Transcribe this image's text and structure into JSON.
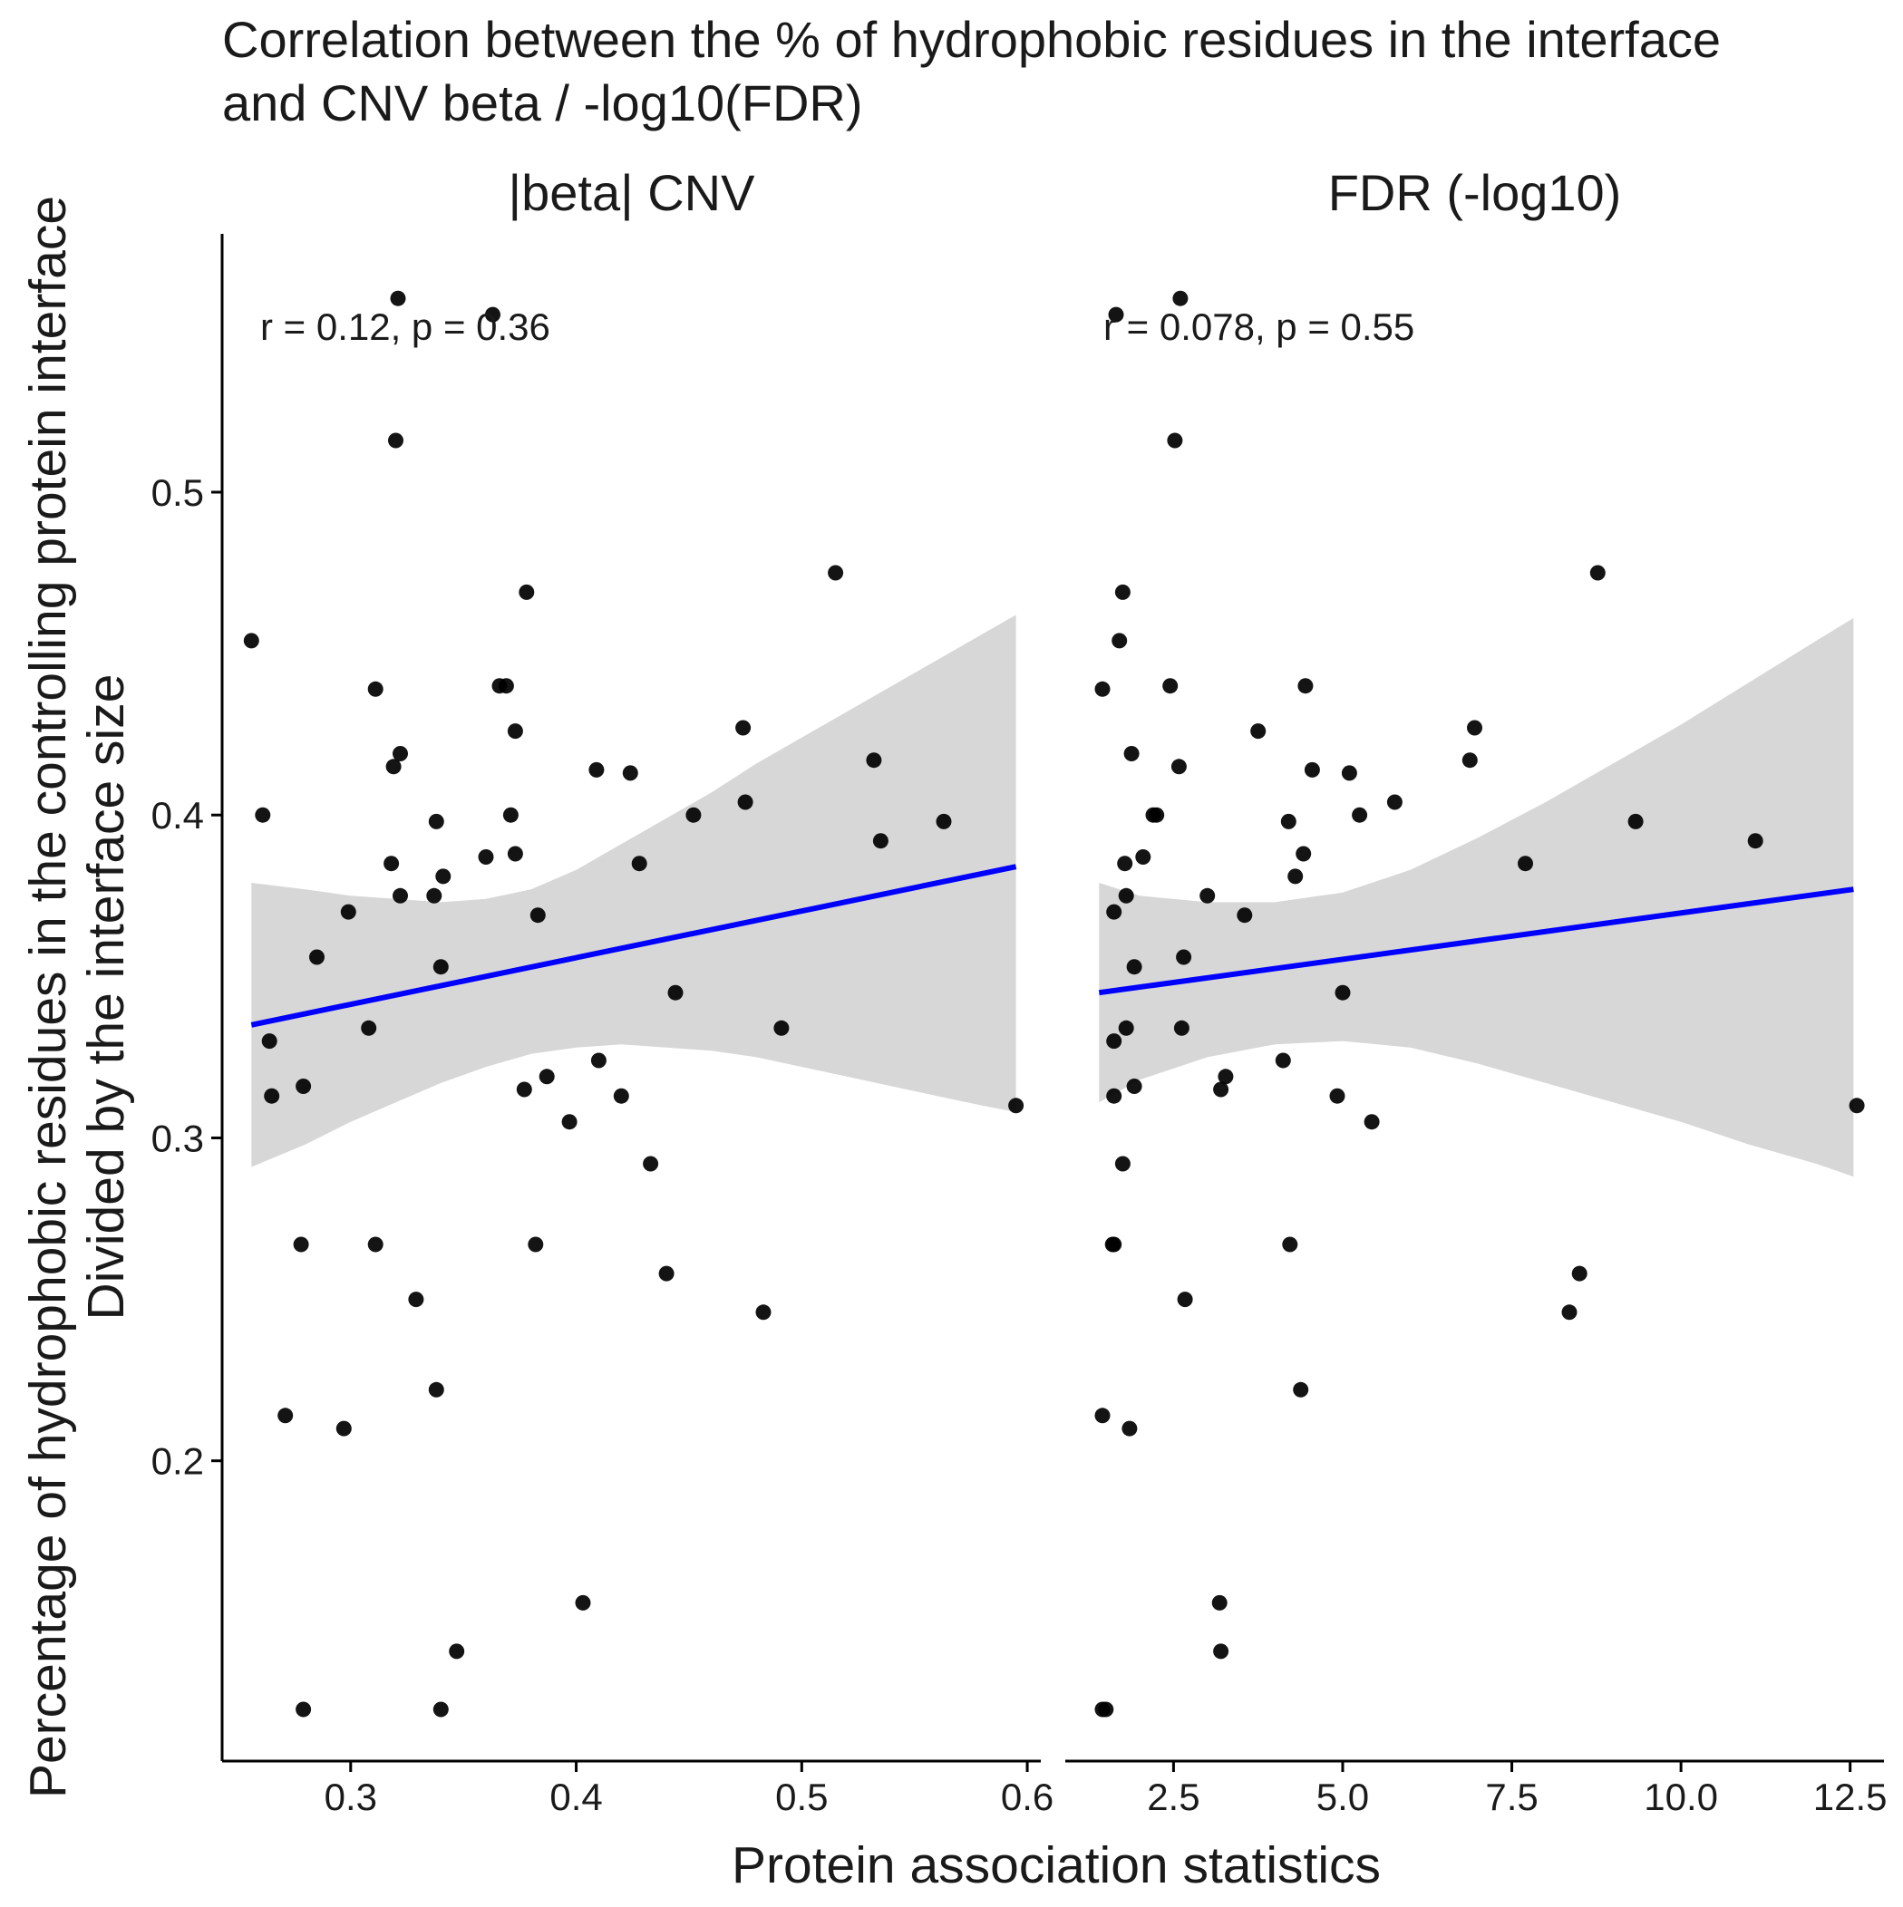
{
  "chart": {
    "title_line1": "Correlation between the % of hydrophobic residues in the interface",
    "title_line2": "and CNV beta / -log10(FDR)",
    "xlabel": "Protein association statistics",
    "ylabel_line1": "Percentage of hydrophobic residues in the controlling protein interface",
    "ylabel_line2": "Divided by the interface size"
  },
  "colors": {
    "points": "#000000",
    "fit_line": "#0000ff",
    "confidence_band": "#d3d3d3",
    "axis": "#000000",
    "background": "#ffffff"
  },
  "chart_data": [
    {
      "type": "scatter",
      "panel": "|beta| CNV",
      "annotation": "r = 0.12, p = 0.36",
      "xlim": [
        0.243,
        0.606
      ],
      "ylim": [
        0.107,
        0.58
      ],
      "x_ticks": [
        0.3,
        0.4,
        0.5,
        0.6
      ],
      "x_tick_labels": [
        "0.3",
        "0.4",
        "0.5",
        "0.6"
      ],
      "y_ticks": [
        0.2,
        0.3,
        0.4,
        0.5
      ],
      "y_tick_labels": [
        "0.2",
        "0.3",
        "0.4",
        "0.5"
      ],
      "fit": {
        "x": [
          0.256,
          0.595
        ],
        "y": [
          0.335,
          0.384
        ]
      },
      "band": {
        "x": [
          0.256,
          0.28,
          0.3,
          0.32,
          0.34,
          0.36,
          0.38,
          0.4,
          0.42,
          0.44,
          0.46,
          0.48,
          0.5,
          0.52,
          0.54,
          0.56,
          0.58,
          0.595
        ],
        "upper": [
          0.379,
          0.377,
          0.375,
          0.374,
          0.373,
          0.374,
          0.377,
          0.383,
          0.391,
          0.399,
          0.407,
          0.416,
          0.424,
          0.432,
          0.44,
          0.448,
          0.456,
          0.462
        ],
        "lower": [
          0.291,
          0.298,
          0.305,
          0.311,
          0.317,
          0.322,
          0.326,
          0.328,
          0.329,
          0.328,
          0.327,
          0.325,
          0.322,
          0.319,
          0.316,
          0.313,
          0.31,
          0.308
        ]
      },
      "points": [
        {
          "x": 0.256,
          "y": 0.454
        },
        {
          "x": 0.261,
          "y": 0.4
        },
        {
          "x": 0.264,
          "y": 0.33
        },
        {
          "x": 0.265,
          "y": 0.313
        },
        {
          "x": 0.271,
          "y": 0.214
        },
        {
          "x": 0.278,
          "y": 0.267
        },
        {
          "x": 0.279,
          "y": 0.316
        },
        {
          "x": 0.279,
          "y": 0.123
        },
        {
          "x": 0.285,
          "y": 0.356
        },
        {
          "x": 0.297,
          "y": 0.21
        },
        {
          "x": 0.299,
          "y": 0.37
        },
        {
          "x": 0.308,
          "y": 0.334
        },
        {
          "x": 0.311,
          "y": 0.267
        },
        {
          "x": 0.311,
          "y": 0.439
        },
        {
          "x": 0.318,
          "y": 0.385
        },
        {
          "x": 0.319,
          "y": 0.415
        },
        {
          "x": 0.32,
          "y": 0.516
        },
        {
          "x": 0.321,
          "y": 0.56
        },
        {
          "x": 0.322,
          "y": 0.375
        },
        {
          "x": 0.322,
          "y": 0.419
        },
        {
          "x": 0.329,
          "y": 0.25
        },
        {
          "x": 0.337,
          "y": 0.375
        },
        {
          "x": 0.338,
          "y": 0.398
        },
        {
          "x": 0.338,
          "y": 0.222
        },
        {
          "x": 0.34,
          "y": 0.353
        },
        {
          "x": 0.34,
          "y": 0.123
        },
        {
          "x": 0.341,
          "y": 0.381
        },
        {
          "x": 0.347,
          "y": 0.141
        },
        {
          "x": 0.36,
          "y": 0.387
        },
        {
          "x": 0.363,
          "y": 0.555
        },
        {
          "x": 0.366,
          "y": 0.44
        },
        {
          "x": 0.369,
          "y": 0.44
        },
        {
          "x": 0.371,
          "y": 0.4
        },
        {
          "x": 0.373,
          "y": 0.388
        },
        {
          "x": 0.373,
          "y": 0.426
        },
        {
          "x": 0.377,
          "y": 0.315
        },
        {
          "x": 0.378,
          "y": 0.469
        },
        {
          "x": 0.382,
          "y": 0.267
        },
        {
          "x": 0.383,
          "y": 0.369
        },
        {
          "x": 0.387,
          "y": 0.319
        },
        {
          "x": 0.397,
          "y": 0.305
        },
        {
          "x": 0.403,
          "y": 0.156
        },
        {
          "x": 0.409,
          "y": 0.414
        },
        {
          "x": 0.41,
          "y": 0.324
        },
        {
          "x": 0.42,
          "y": 0.313
        },
        {
          "x": 0.424,
          "y": 0.413
        },
        {
          "x": 0.428,
          "y": 0.385
        },
        {
          "x": 0.433,
          "y": 0.292
        },
        {
          "x": 0.44,
          "y": 0.258
        },
        {
          "x": 0.444,
          "y": 0.345
        },
        {
          "x": 0.452,
          "y": 0.4
        },
        {
          "x": 0.474,
          "y": 0.427
        },
        {
          "x": 0.475,
          "y": 0.404
        },
        {
          "x": 0.483,
          "y": 0.246
        },
        {
          "x": 0.491,
          "y": 0.334
        },
        {
          "x": 0.515,
          "y": 0.475
        },
        {
          "x": 0.532,
          "y": 0.417
        },
        {
          "x": 0.535,
          "y": 0.392
        },
        {
          "x": 0.563,
          "y": 0.398
        },
        {
          "x": 0.595,
          "y": 0.31
        }
      ]
    },
    {
      "type": "scatter",
      "panel": "FDR (-log10)",
      "annotation": "r = 0.078, p = 0.55",
      "xlim": [
        0.9,
        13.0
      ],
      "ylim": [
        0.107,
        0.58
      ],
      "x_ticks": [
        2.5,
        5.0,
        7.5,
        10.0,
        12.5
      ],
      "x_tick_labels": [
        "2.5",
        "5.0",
        "7.5",
        "10.0",
        "12.5"
      ],
      "y_ticks": [
        0.2,
        0.3,
        0.4,
        0.5
      ],
      "y_tick_labels": [
        "0.2",
        "0.3",
        "0.4",
        "0.5"
      ],
      "fit": {
        "x": [
          1.4,
          12.55
        ],
        "y": [
          0.345,
          0.377
        ]
      },
      "band": {
        "x": [
          1.4,
          2.0,
          3.0,
          4.0,
          5.0,
          6.0,
          7.0,
          8.0,
          9.0,
          10.0,
          11.0,
          12.0,
          12.55
        ],
        "upper": [
          0.379,
          0.375,
          0.373,
          0.373,
          0.376,
          0.383,
          0.393,
          0.404,
          0.416,
          0.428,
          0.441,
          0.454,
          0.461
        ],
        "lower": [
          0.311,
          0.318,
          0.325,
          0.329,
          0.33,
          0.328,
          0.323,
          0.317,
          0.311,
          0.305,
          0.298,
          0.292,
          0.288
        ]
      },
      "points": [
        {
          "x": 1.45,
          "y": 0.123
        },
        {
          "x": 1.5,
          "y": 0.123
        },
        {
          "x": 1.45,
          "y": 0.439
        },
        {
          "x": 1.45,
          "y": 0.214
        },
        {
          "x": 1.6,
          "y": 0.267
        },
        {
          "x": 1.62,
          "y": 0.267
        },
        {
          "x": 1.62,
          "y": 0.313
        },
        {
          "x": 1.62,
          "y": 0.33
        },
        {
          "x": 1.62,
          "y": 0.37
        },
        {
          "x": 1.65,
          "y": 0.555
        },
        {
          "x": 1.7,
          "y": 0.454
        },
        {
          "x": 1.75,
          "y": 0.292
        },
        {
          "x": 1.75,
          "y": 0.469
        },
        {
          "x": 1.78,
          "y": 0.385
        },
        {
          "x": 1.8,
          "y": 0.375
        },
        {
          "x": 1.8,
          "y": 0.334
        },
        {
          "x": 1.85,
          "y": 0.21
        },
        {
          "x": 1.88,
          "y": 0.419
        },
        {
          "x": 1.92,
          "y": 0.316
        },
        {
          "x": 1.92,
          "y": 0.353
        },
        {
          "x": 2.05,
          "y": 0.387
        },
        {
          "x": 2.2,
          "y": 0.4
        },
        {
          "x": 2.25,
          "y": 0.4
        },
        {
          "x": 2.45,
          "y": 0.44
        },
        {
          "x": 2.52,
          "y": 0.516
        },
        {
          "x": 2.58,
          "y": 0.415
        },
        {
          "x": 2.6,
          "y": 0.56
        },
        {
          "x": 2.62,
          "y": 0.334
        },
        {
          "x": 2.65,
          "y": 0.356
        },
        {
          "x": 2.67,
          "y": 0.25
        },
        {
          "x": 3.0,
          "y": 0.375
        },
        {
          "x": 3.18,
          "y": 0.156
        },
        {
          "x": 3.2,
          "y": 0.141
        },
        {
          "x": 3.2,
          "y": 0.315
        },
        {
          "x": 3.27,
          "y": 0.319
        },
        {
          "x": 3.55,
          "y": 0.369
        },
        {
          "x": 3.75,
          "y": 0.426
        },
        {
          "x": 4.12,
          "y": 0.324
        },
        {
          "x": 4.2,
          "y": 0.398
        },
        {
          "x": 4.22,
          "y": 0.267
        },
        {
          "x": 4.3,
          "y": 0.381
        },
        {
          "x": 4.38,
          "y": 0.222
        },
        {
          "x": 4.42,
          "y": 0.388
        },
        {
          "x": 4.45,
          "y": 0.44
        },
        {
          "x": 4.55,
          "y": 0.414
        },
        {
          "x": 4.92,
          "y": 0.313
        },
        {
          "x": 5.0,
          "y": 0.345
        },
        {
          "x": 5.1,
          "y": 0.413
        },
        {
          "x": 5.25,
          "y": 0.4
        },
        {
          "x": 5.43,
          "y": 0.305
        },
        {
          "x": 5.77,
          "y": 0.404
        },
        {
          "x": 6.88,
          "y": 0.417
        },
        {
          "x": 6.95,
          "y": 0.427
        },
        {
          "x": 7.7,
          "y": 0.385
        },
        {
          "x": 8.35,
          "y": 0.246
        },
        {
          "x": 8.5,
          "y": 0.258
        },
        {
          "x": 8.77,
          "y": 0.475
        },
        {
          "x": 9.33,
          "y": 0.398
        },
        {
          "x": 11.1,
          "y": 0.392
        },
        {
          "x": 12.6,
          "y": 0.31
        }
      ]
    }
  ]
}
